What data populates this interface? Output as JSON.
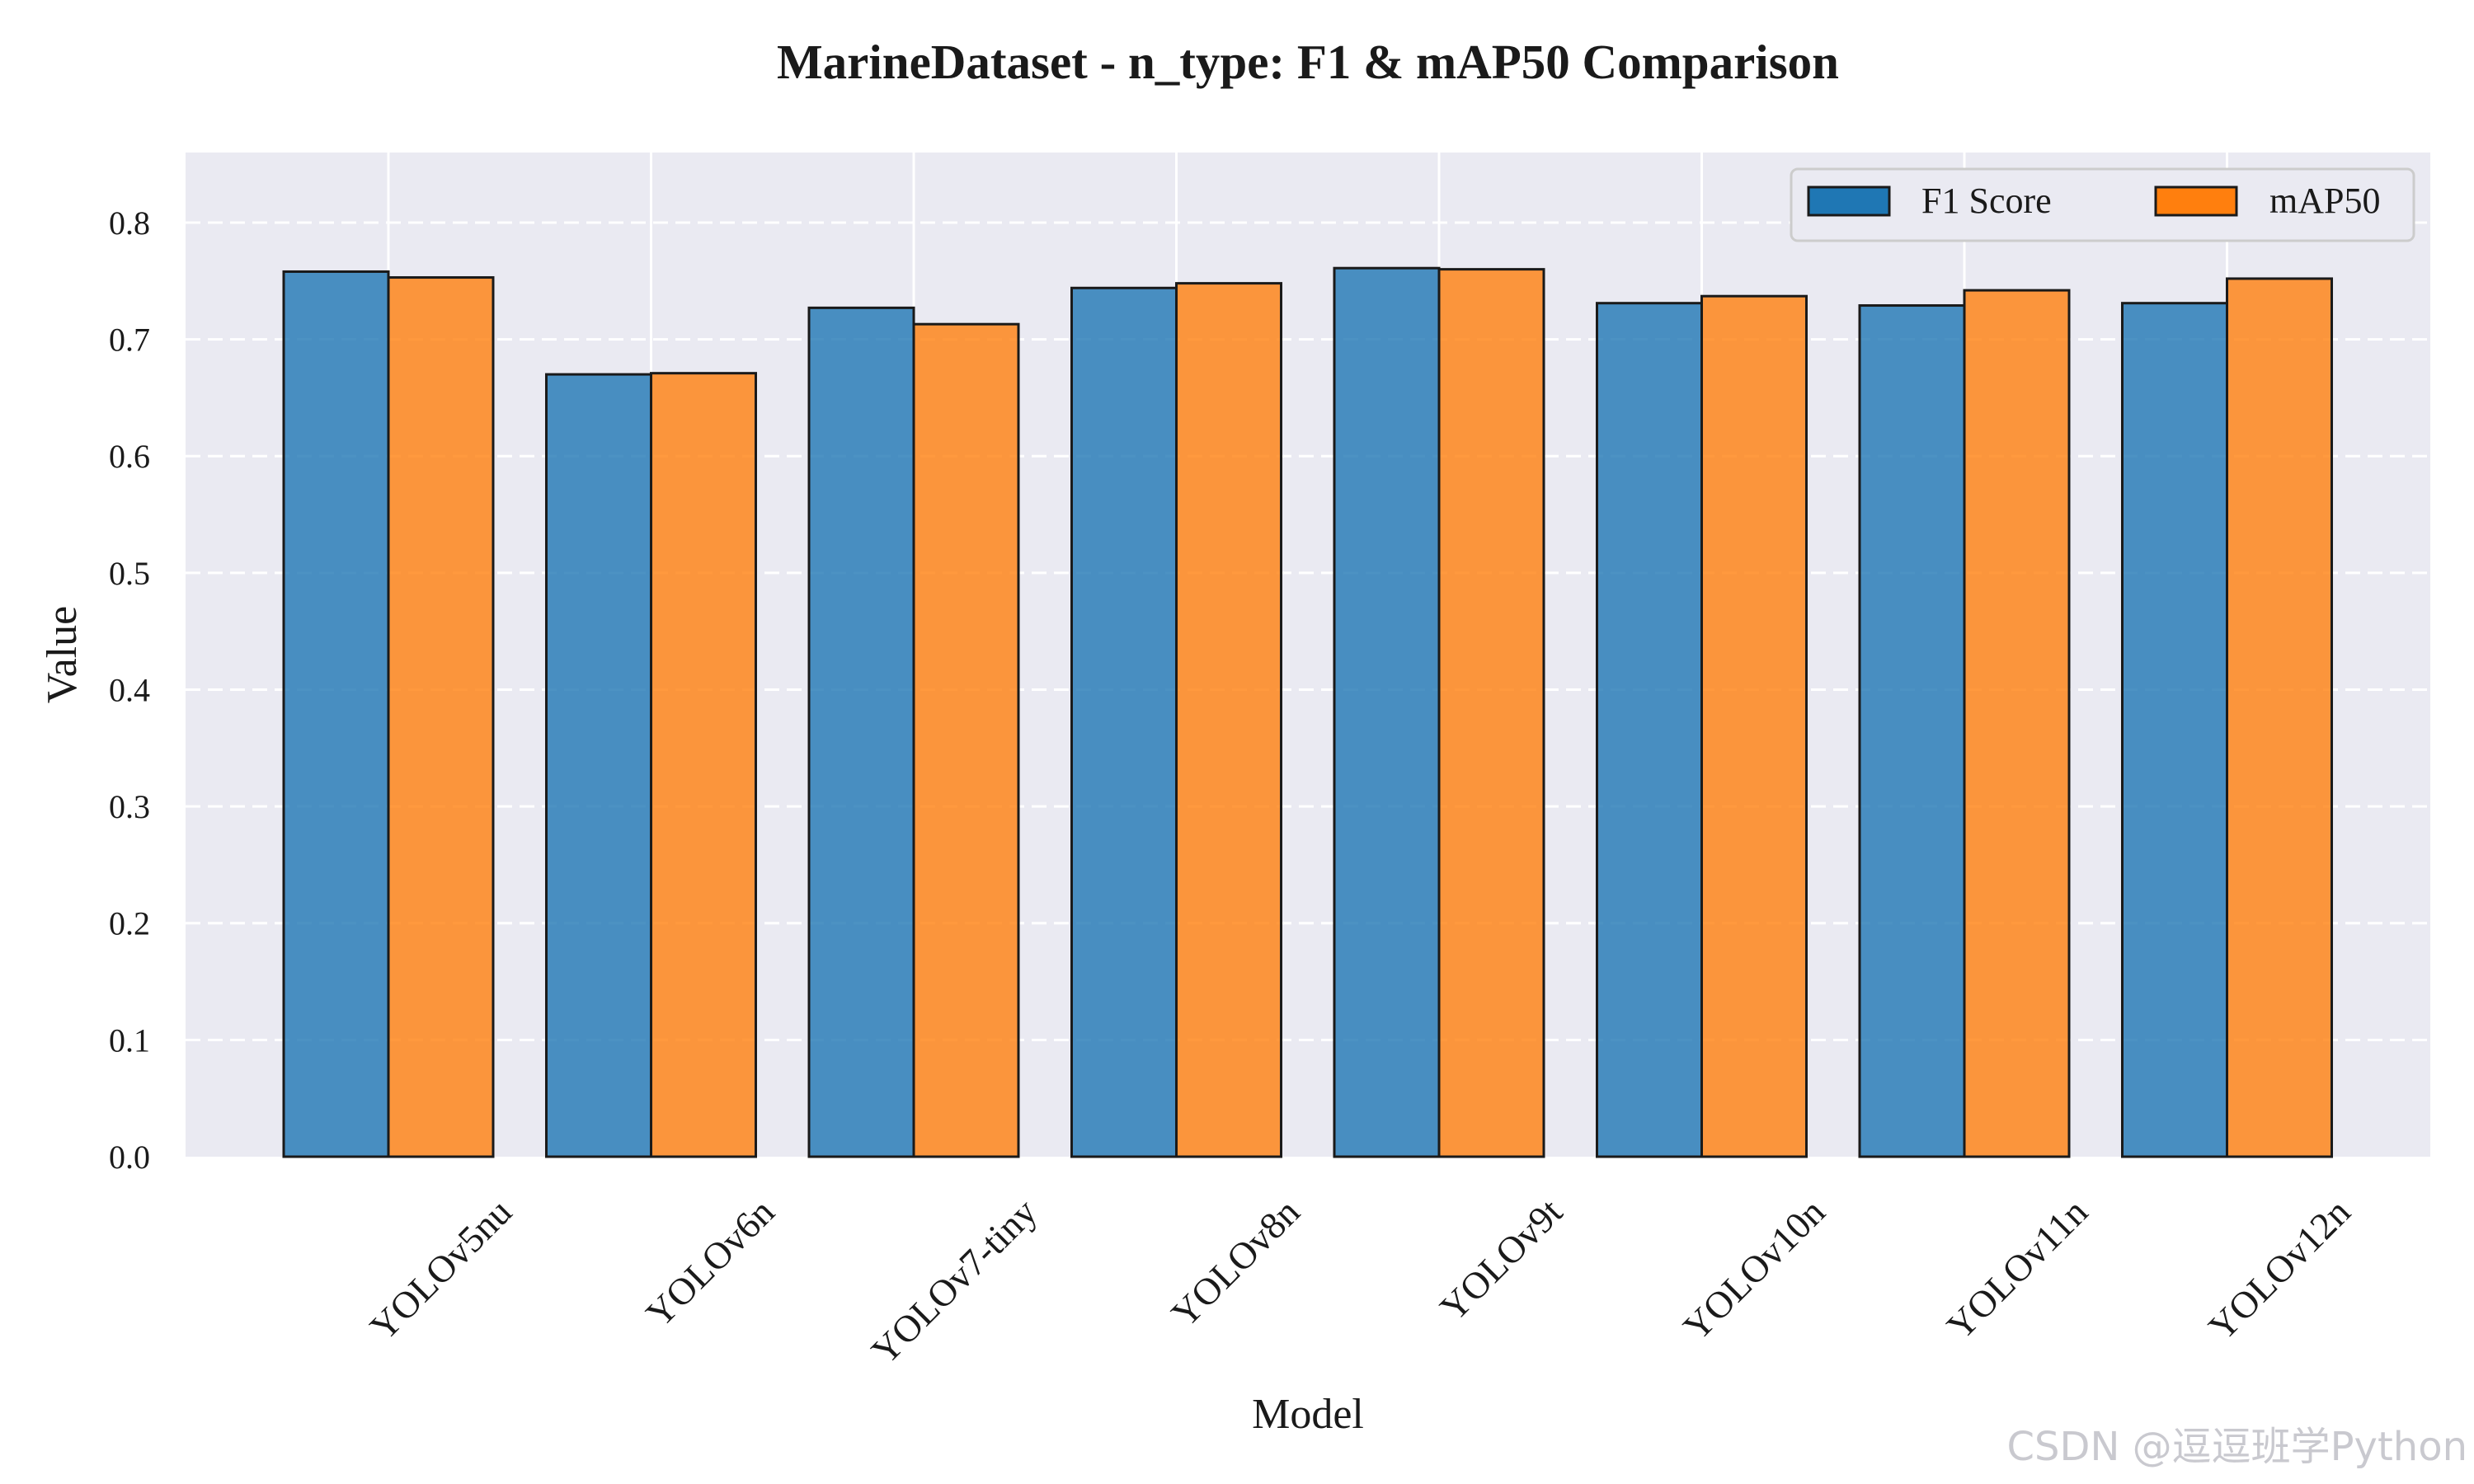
{
  "chart_data": {
    "type": "bar",
    "title": "MarineDataset - n_type: F1 & mAP50 Comparison",
    "xlabel": "Model",
    "ylabel": "Value",
    "categories": [
      "YOLOv5nu",
      "YOLOv6n",
      "YOLOv7-tiny",
      "YOLOv8n",
      "YOLOv9t",
      "YOLOv10n",
      "YOLOv11n",
      "YOLOv12n"
    ],
    "series": [
      {
        "name": "F1 Score",
        "color": "#1f77b4",
        "values": [
          0.758,
          0.67,
          0.727,
          0.744,
          0.761,
          0.731,
          0.729,
          0.731
        ]
      },
      {
        "name": "mAP50",
        "color": "#ff7f0e",
        "values": [
          0.753,
          0.671,
          0.713,
          0.748,
          0.76,
          0.737,
          0.742,
          0.752
        ]
      }
    ],
    "ylim": [
      0,
      0.86
    ],
    "yticks": [
      "0.0",
      "0.1",
      "0.2",
      "0.3",
      "0.4",
      "0.5",
      "0.6",
      "0.7",
      "0.8"
    ],
    "grid": true,
    "legend_position": "top-right",
    "background_color": "#eaeaf2"
  },
  "watermark": "CSDN @逗逗班学Python"
}
